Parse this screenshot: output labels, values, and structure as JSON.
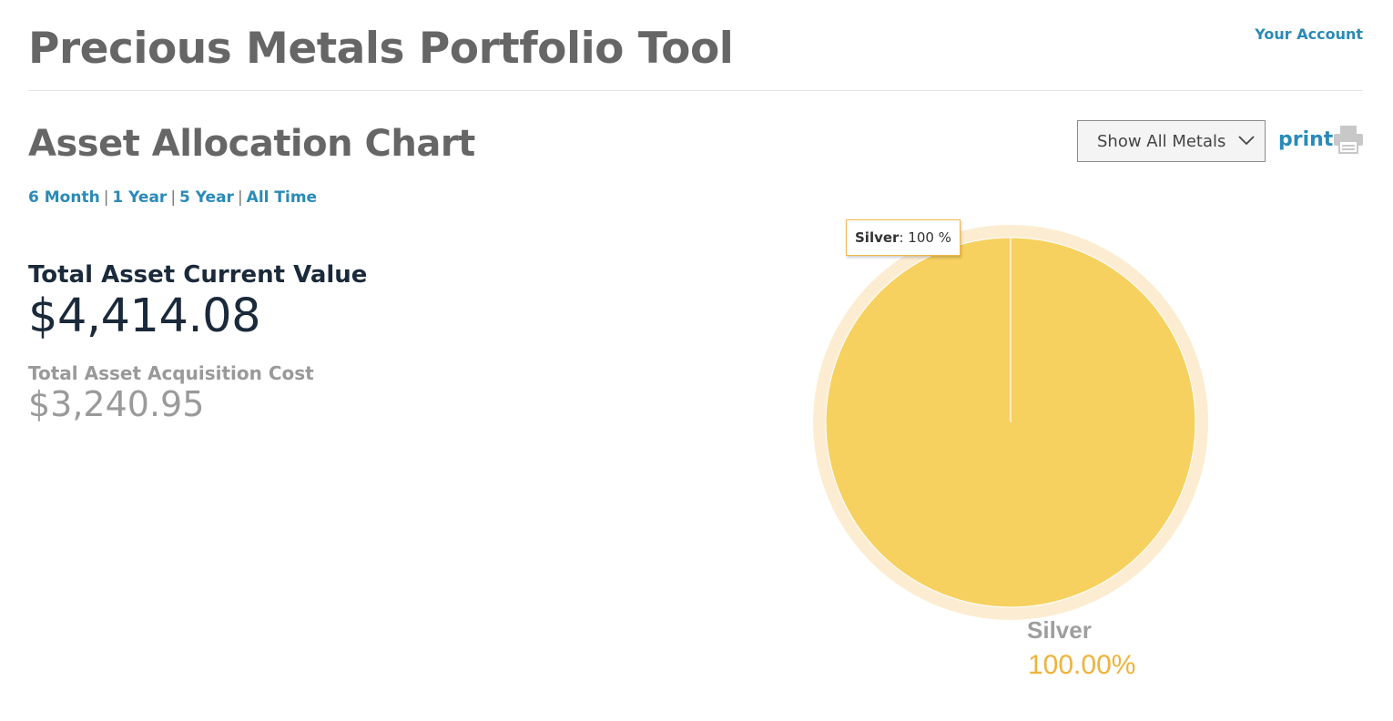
{
  "header": {
    "title": "Precious Metals Portfolio Tool",
    "account_link": "Your Account"
  },
  "section": {
    "title": "Asset Allocation Chart"
  },
  "filter": {
    "selected": "Show All Metals"
  },
  "print": {
    "label": "print",
    "icon": "printer-icon"
  },
  "periods": [
    {
      "label": "6 Month"
    },
    {
      "label": "1 Year"
    },
    {
      "label": "5 Year"
    },
    {
      "label": "All Time"
    }
  ],
  "period_separator": "|",
  "summary": {
    "current_label": "Total Asset Current Value",
    "current_value": "$4,414.08",
    "cost_label": "Total Asset Acquisition Cost",
    "cost_value": "$3,240.95"
  },
  "tooltip": {
    "name": "Silver",
    "separator": ":",
    "value": "100 %"
  },
  "colors": {
    "accent": "#2a8ab8",
    "slice_silver": "#f6d15f",
    "slice_halo": "#fcedd2",
    "legend_pct": "#f0b23a"
  },
  "chart_data": {
    "type": "pie",
    "categories": [
      "Silver"
    ],
    "values": [
      100.0
    ],
    "labels": [
      "100.00%"
    ]
  }
}
